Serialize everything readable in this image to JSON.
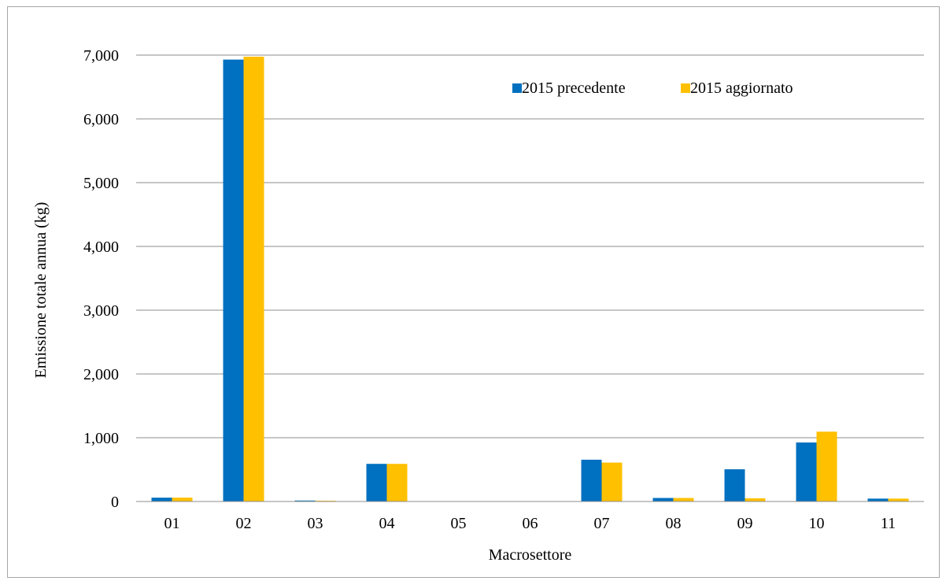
{
  "chart_data": {
    "type": "bar",
    "xlabel": "Macrosettore",
    "ylabel": "Emissione totale annua (kg)",
    "categories": [
      "01",
      "02",
      "03",
      "04",
      "05",
      "06",
      "07",
      "08",
      "09",
      "10",
      "11"
    ],
    "ylim": [
      0,
      7000
    ],
    "yticks": [
      0,
      1000,
      2000,
      3000,
      4000,
      5000,
      6000,
      7000
    ],
    "ytick_labels": [
      "0",
      "1,000",
      "2,000",
      "3,000",
      "4,000",
      "5,000",
      "6,000",
      "7,000"
    ],
    "grid": "horizontal",
    "legend_position": "top-right",
    "series": [
      {
        "name": "2015 precedente",
        "color": "#0070c0",
        "values": [
          60,
          6930,
          15,
          590,
          0,
          0,
          655,
          55,
          505,
          925,
          45
        ]
      },
      {
        "name": "2015 aggiornato",
        "color": "#ffc000",
        "values": [
          60,
          6975,
          12,
          590,
          0,
          0,
          610,
          55,
          50,
          1095,
          45
        ]
      }
    ]
  }
}
